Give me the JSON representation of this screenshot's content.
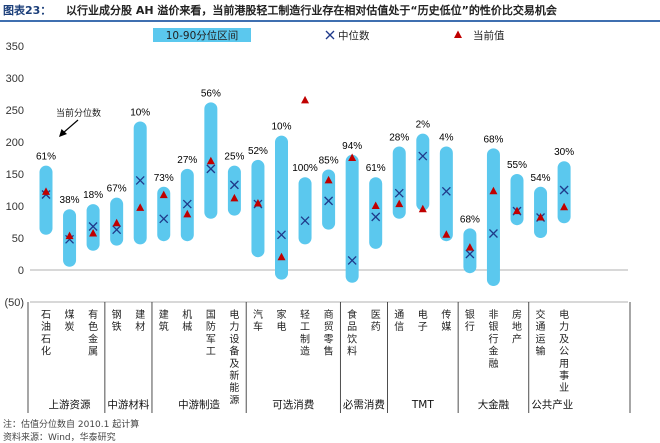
{
  "title": {
    "label": "图表23：",
    "text": "以行业成分股 AH 溢价来看，当前港股轻工制造行业存在相对估值处于“历史低位”的性价比交易机会"
  },
  "footer": {
    "note": "注：估值分位数自 2010.1 起计算",
    "source": "资料来源：Wind，华泰研究"
  },
  "colors": {
    "band": "#5bc8ee",
    "median": "#1f3a8a",
    "current": "#c00000"
  },
  "chart_data": {
    "type": "range",
    "ylim": [
      -50,
      350
    ],
    "yticks": [
      350,
      300,
      250,
      200,
      150,
      100,
      50,
      0,
      "(50)"
    ],
    "legend": {
      "band": "10-90分位区间",
      "median": "中位数",
      "current": "当前值"
    },
    "annotation": "当前分位数",
    "categories": [
      "石油石化",
      "煤炭",
      "有色金属",
      "钢铁",
      "建材",
      "建筑",
      "机械",
      "国防军工",
      "电力设备及新能源",
      "汽车",
      "家电",
      "轻工制造",
      "商贸零售",
      "食品饮料",
      "医药",
      "通信",
      "电子",
      "传媒",
      "银行",
      "非银行金融",
      "房地产",
      "交通运输",
      "电力及公用事业"
    ],
    "percentiles": [
      "61%",
      "38%",
      "18%",
      "67%",
      "10%",
      "73%",
      "27%",
      "56%",
      "25%",
      "52%",
      "10%",
      "100%",
      "85%",
      "94%",
      "61%",
      "28%",
      "2%",
      "4%",
      "68%",
      "68%",
      "55%",
      "54%",
      "30%"
    ],
    "low": [
      55,
      5,
      30,
      38,
      40,
      45,
      45,
      80,
      85,
      20,
      -15,
      40,
      63,
      -20,
      33,
      80,
      93,
      45,
      -5,
      -25,
      70,
      50,
      73
    ],
    "high": [
      163,
      95,
      103,
      113,
      232,
      130,
      158,
      262,
      163,
      172,
      210,
      145,
      157,
      180,
      145,
      193,
      213,
      193,
      65,
      190,
      150,
      130,
      170
    ],
    "median": [
      118,
      48,
      68,
      63,
      140,
      80,
      103,
      158,
      133,
      103,
      55,
      77,
      108,
      15,
      83,
      120,
      178,
      123,
      25,
      57,
      92,
      82,
      125
    ],
    "current": [
      122,
      53,
      57,
      73,
      97,
      117,
      87,
      170,
      112,
      104,
      20,
      265,
      140,
      175,
      100,
      103,
      95,
      55,
      35,
      123,
      92,
      82,
      98
    ],
    "groups": [
      {
        "name": "上游资源",
        "count": 3
      },
      {
        "name": "中游材料",
        "count": 2
      },
      {
        "name": "中游制造",
        "count": 4
      },
      {
        "name": "可选消费",
        "count": 4
      },
      {
        "name": "必需消费",
        "count": 2
      },
      {
        "name": "TMT",
        "count": 3
      },
      {
        "name": "大金融",
        "count": 3
      },
      {
        "name": "公共产业",
        "count": 2
      }
    ]
  }
}
